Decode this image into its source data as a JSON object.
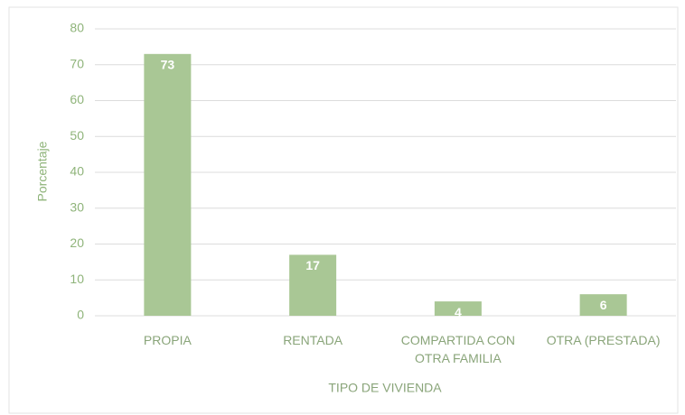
{
  "chart_data": {
    "type": "bar",
    "categories": [
      "PROPIA",
      "RENTADA",
      "COMPARTIDA CON OTRA FAMILIA",
      "OTRA (PRESTADA)"
    ],
    "values": [
      73,
      17,
      4,
      6
    ],
    "color": "#a9c795",
    "x_label": "TIPO DE VIVIENDA",
    "y_label": "Porcentaje",
    "ylim": [
      0,
      80
    ],
    "yticks": [
      0,
      10,
      20,
      30,
      40,
      50,
      60,
      70,
      80
    ],
    "grid": true
  }
}
